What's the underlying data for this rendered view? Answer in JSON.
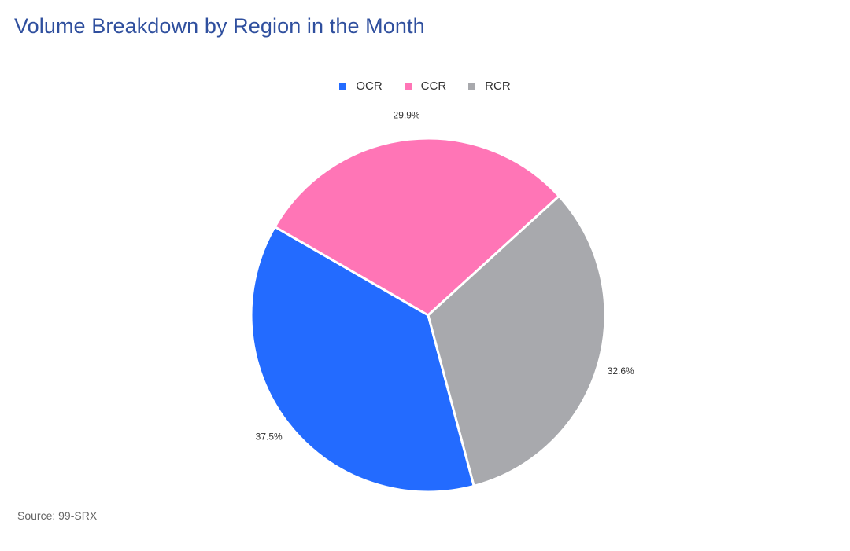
{
  "title": "Volume Breakdown by Region in the Month",
  "source": "Source: 99-SRX",
  "chart_data": {
    "type": "pie",
    "title": "Volume Breakdown by Region in the Month",
    "legend_position": "top-center",
    "slices": [
      {
        "label": "OCR",
        "value": 37.5,
        "value_label": "37.5%",
        "color": "#236bff"
      },
      {
        "label": "CCR",
        "value": 29.9,
        "value_label": "29.9%",
        "color": "#ff75b6"
      },
      {
        "label": "RCR",
        "value": 32.6,
        "value_label": "32.6%",
        "color": "#a8a9ad"
      }
    ]
  }
}
